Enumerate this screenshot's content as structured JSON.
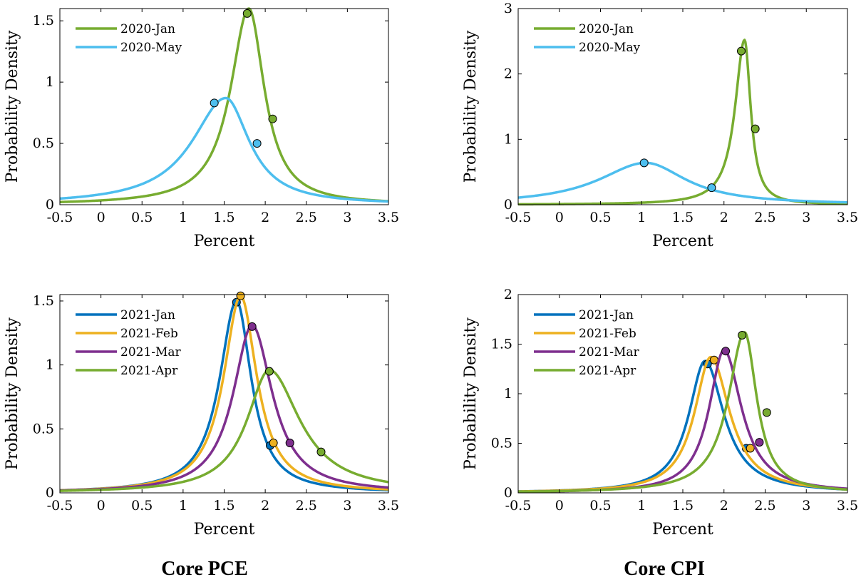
{
  "column_titles": [
    "Core PCE",
    "Core CPI"
  ],
  "colors": {
    "2020-Jan": "#77AC30",
    "2020-May": "#4DBEEE",
    "2021-Jan": "#0072BD",
    "2021-Feb": "#EDB120",
    "2021-Mar": "#7E2F8E",
    "2021-Apr": "#77AC30"
  },
  "chart_data": [
    {
      "type": "line",
      "column": "Core PCE",
      "xlabel": "Percent",
      "ylabel": "Probability Density",
      "xlim": [
        -0.5,
        3.5
      ],
      "ylim": [
        0,
        1.6
      ],
      "xticks": [
        "-0.5",
        "0",
        "0.5",
        "1",
        "1.5",
        "2",
        "2.5",
        "3",
        "3.5"
      ],
      "yticks": [
        "0",
        "0.5",
        "1",
        "1.5"
      ],
      "legend_position": "top-left",
      "series": [
        {
          "name": "2020-Jan",
          "peak_x": 1.8,
          "peak_y": 1.6,
          "sigma_left": 0.27,
          "sigma_right": 0.23,
          "markers": [
            [
              1.78,
              1.56
            ],
            [
              2.09,
              0.7
            ]
          ]
        },
        {
          "name": "2020-May",
          "peak_x": 1.52,
          "peak_y": 0.87,
          "sigma_left": 0.5,
          "sigma_right": 0.35,
          "markers": [
            [
              1.38,
              0.83
            ],
            [
              1.9,
              0.5
            ]
          ]
        }
      ]
    },
    {
      "type": "line",
      "column": "Core CPI",
      "xlabel": "Percent",
      "ylabel": "Probability Density",
      "xlim": [
        -0.5,
        3.5
      ],
      "ylim": [
        0,
        3
      ],
      "xticks": [
        "-0.5",
        "0",
        "0.5",
        "1",
        "1.5",
        "2",
        "2.5",
        "3",
        "3.5"
      ],
      "yticks": [
        "0",
        "1",
        "2",
        "3"
      ],
      "legend_position": "top-left",
      "series": [
        {
          "name": "2020-Jan",
          "peak_x": 2.25,
          "peak_y": 2.52,
          "sigma_left": 0.14,
          "sigma_right": 0.09,
          "markers": [
            [
              2.21,
              2.35
            ],
            [
              2.38,
              1.16
            ]
          ]
        },
        {
          "name": "2020-May",
          "peak_x": 1.05,
          "peak_y": 0.64,
          "sigma_left": 0.7,
          "sigma_right": 0.6,
          "markers": [
            [
              1.03,
              0.64
            ],
            [
              1.85,
              0.26
            ]
          ]
        }
      ]
    },
    {
      "type": "line",
      "column": "Core PCE",
      "xlabel": "Percent",
      "ylabel": "Probability Density",
      "xlim": [
        -0.5,
        3.5
      ],
      "ylim": [
        0,
        1.55
      ],
      "xticks": [
        "-0.5",
        "0",
        "0.5",
        "1",
        "1.5",
        "2",
        "2.5",
        "3",
        "3.5"
      ],
      "yticks": [
        "0",
        "0.5",
        "1",
        "1.5"
      ],
      "legend_position": "top-left",
      "series": [
        {
          "name": "2021-Jan",
          "peak_x": 1.65,
          "peak_y": 1.5,
          "sigma_left": 0.25,
          "sigma_right": 0.22,
          "markers": [
            [
              1.65,
              1.49
            ],
            [
              2.06,
              0.37
            ]
          ]
        },
        {
          "name": "2021-Feb",
          "peak_x": 1.7,
          "peak_y": 1.54,
          "sigma_left": 0.25,
          "sigma_right": 0.24,
          "markers": [
            [
              1.7,
              1.54
            ],
            [
              2.1,
              0.39
            ]
          ]
        },
        {
          "name": "2021-Mar",
          "peak_x": 1.84,
          "peak_y": 1.31,
          "sigma_left": 0.28,
          "sigma_right": 0.3,
          "markers": [
            [
              1.84,
              1.3
            ],
            [
              2.3,
              0.39
            ]
          ]
        },
        {
          "name": "2021-Apr",
          "peak_x": 2.05,
          "peak_y": 0.96,
          "sigma_left": 0.33,
          "sigma_right": 0.45,
          "markers": [
            [
              2.05,
              0.95
            ],
            [
              2.68,
              0.32
            ]
          ]
        }
      ]
    },
    {
      "type": "line",
      "column": "Core CPI",
      "xlabel": "Percent",
      "ylabel": "Probability Density",
      "xlim": [
        -0.5,
        3.5
      ],
      "ylim": [
        0,
        2
      ],
      "xticks": [
        "-0.5",
        "0",
        "0.5",
        "1",
        "1.5",
        "2",
        "2.5",
        "3",
        "3.5"
      ],
      "yticks": [
        "0",
        "0.5",
        "1",
        "1.5",
        "2"
      ],
      "legend_position": "top-left",
      "series": [
        {
          "name": "2021-Jan",
          "peak_x": 1.77,
          "peak_y": 1.33,
          "sigma_left": 0.24,
          "sigma_right": 0.28,
          "markers": [
            [
              1.8,
              1.3
            ],
            [
              2.27,
              0.45
            ]
          ]
        },
        {
          "name": "2021-Feb",
          "peak_x": 1.84,
          "peak_y": 1.37,
          "sigma_left": 0.24,
          "sigma_right": 0.28,
          "markers": [
            [
              1.88,
              1.34
            ],
            [
              2.32,
              0.45
            ]
          ]
        },
        {
          "name": "2021-Mar",
          "peak_x": 2.0,
          "peak_y": 1.44,
          "sigma_left": 0.22,
          "sigma_right": 0.26,
          "markers": [
            [
              2.02,
              1.43
            ],
            [
              2.43,
              0.51
            ]
          ]
        },
        {
          "name": "2021-Apr",
          "peak_x": 2.25,
          "peak_y": 1.62,
          "sigma_left": 0.24,
          "sigma_right": 0.18,
          "markers": [
            [
              2.22,
              1.59
            ],
            [
              2.52,
              0.81
            ]
          ]
        }
      ]
    }
  ]
}
